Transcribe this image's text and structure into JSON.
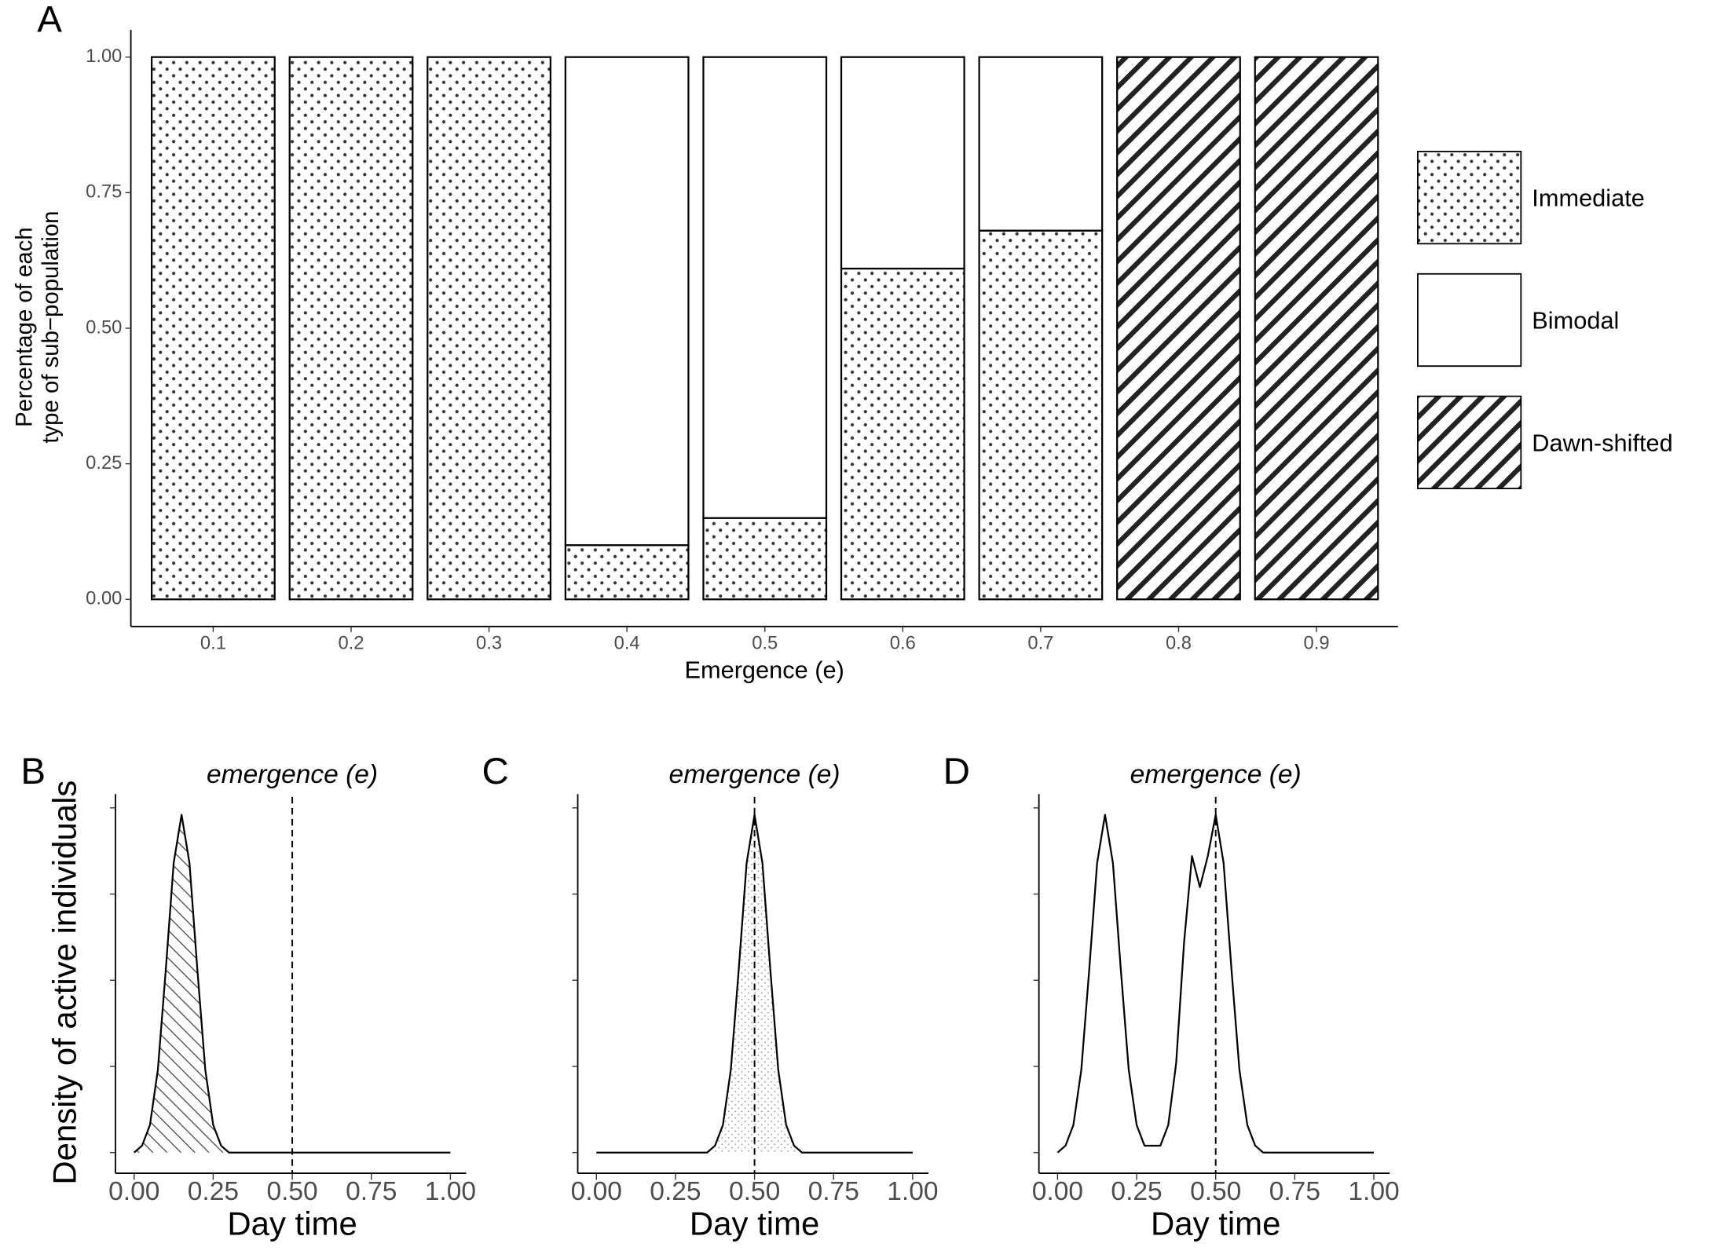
{
  "chart_data": [
    {
      "type": "stacked_bar",
      "panel_label": "A",
      "xlabel": "Emergence (e)",
      "ylabel": [
        "Percentage of each",
        "type of sub−population"
      ],
      "categories": [
        "0.1",
        "0.2",
        "0.3",
        "0.4",
        "0.5",
        "0.6",
        "0.7",
        "0.8",
        "0.9"
      ],
      "series": [
        {
          "name": "Immediate",
          "pattern": "dots",
          "values": [
            1,
            1,
            1,
            0.1,
            0.15,
            0.61,
            0.68,
            0,
            0
          ]
        },
        {
          "name": "Bimodal",
          "pattern": "none",
          "values": [
            0,
            0,
            0,
            0.9,
            0.85,
            0.39,
            0.32,
            0,
            0
          ]
        },
        {
          "name": "Dawn-shifted",
          "pattern": "stripes",
          "values": [
            0,
            0,
            0,
            0,
            0,
            0,
            0,
            1,
            1
          ]
        }
      ],
      "ylim": [
        -0.05,
        1.05
      ],
      "yticks": [
        {
          "value": 0,
          "label": "0.00"
        },
        {
          "value": 0.25,
          "label": "0.25"
        },
        {
          "value": 0.5,
          "label": "0.50"
        },
        {
          "value": 0.75,
          "label": "0.75"
        },
        {
          "value": 1,
          "label": "1.00"
        }
      ]
    },
    {
      "type": "line",
      "panel_label": "B",
      "xlabel": "Day time",
      "ylabel": "Density of active individuals",
      "annotation": "emergence (e)",
      "vline": 0.5,
      "fill_pattern": "hatch",
      "color": "#000000",
      "x": [
        0,
        0.025,
        0.05,
        0.075,
        0.1,
        0.125,
        0.15,
        0.175,
        0.2,
        0.225,
        0.25,
        0.275,
        0.3,
        0.325,
        0.35,
        0.375,
        0.4,
        0.425,
        0.45,
        0.475,
        0.5,
        0.525,
        0.55,
        0.575,
        0.6,
        0.625,
        0.65,
        0.675,
        0.7,
        0.725,
        0.75,
        0.775,
        0.8,
        0.825,
        0.85,
        0.875,
        0.9,
        0.925,
        0.95,
        0.975,
        1
      ],
      "values": [
        0,
        0.02,
        0.08,
        0.24,
        0.53,
        0.84,
        0.98,
        0.84,
        0.53,
        0.24,
        0.08,
        0.02,
        0,
        0,
        0,
        0,
        0,
        0,
        0,
        0,
        0,
        0,
        0,
        0,
        0,
        0,
        0,
        0,
        0,
        0,
        0,
        0,
        0,
        0,
        0,
        0,
        0,
        0,
        0,
        0,
        0
      ],
      "xlim": [
        -0.06,
        1.05
      ],
      "ylim": [
        -0.06,
        1.04
      ],
      "xticks": [
        {
          "value": 0,
          "label": "0.00"
        },
        {
          "value": 0.25,
          "label": "0.25"
        },
        {
          "value": 0.5,
          "label": "0.50"
        },
        {
          "value": 0.75,
          "label": "0.75"
        },
        {
          "value": 1,
          "label": "1.00"
        }
      ],
      "yticks": [
        0,
        0.25,
        0.5,
        0.75,
        1
      ]
    },
    {
      "type": "line",
      "panel_label": "C",
      "xlabel": "Day time",
      "annotation": "emergence (e)",
      "vline": 0.5,
      "fill_pattern": "finedots",
      "color": "#000000",
      "x": [
        0,
        0.025,
        0.05,
        0.075,
        0.1,
        0.125,
        0.15,
        0.175,
        0.2,
        0.225,
        0.25,
        0.275,
        0.3,
        0.325,
        0.35,
        0.375,
        0.4,
        0.425,
        0.45,
        0.475,
        0.5,
        0.525,
        0.55,
        0.575,
        0.6,
        0.625,
        0.65,
        0.675,
        0.7,
        0.725,
        0.75,
        0.775,
        0.8,
        0.825,
        0.85,
        0.875,
        0.9,
        0.925,
        0.95,
        0.975,
        1
      ],
      "values": [
        0,
        0,
        0,
        0,
        0,
        0,
        0,
        0,
        0,
        0,
        0,
        0,
        0,
        0,
        0,
        0.02,
        0.08,
        0.24,
        0.53,
        0.84,
        0.98,
        0.84,
        0.53,
        0.24,
        0.08,
        0.02,
        0,
        0,
        0,
        0,
        0,
        0,
        0,
        0,
        0,
        0,
        0,
        0,
        0,
        0,
        0
      ],
      "xlim": [
        -0.06,
        1.05
      ],
      "ylim": [
        -0.06,
        1.04
      ],
      "xticks": [
        {
          "value": 0,
          "label": "0.00"
        },
        {
          "value": 0.25,
          "label": "0.25"
        },
        {
          "value": 0.5,
          "label": "0.50"
        },
        {
          "value": 0.75,
          "label": "0.75"
        },
        {
          "value": 1,
          "label": "1.00"
        }
      ],
      "yticks": [
        0,
        0.25,
        0.5,
        0.75,
        1
      ]
    },
    {
      "type": "line",
      "panel_label": "D",
      "xlabel": "Day time",
      "annotation": "emergence (e)",
      "vline": 0.5,
      "fill_pattern": "none",
      "color": "#000000",
      "x": [
        0,
        0.025,
        0.05,
        0.075,
        0.1,
        0.125,
        0.15,
        0.175,
        0.2,
        0.225,
        0.25,
        0.275,
        0.3,
        0.325,
        0.35,
        0.375,
        0.4,
        0.425,
        0.45,
        0.475,
        0.5,
        0.525,
        0.55,
        0.575,
        0.6,
        0.625,
        0.65,
        0.675,
        0.7,
        0.725,
        0.75,
        0.775,
        0.8,
        0.825,
        0.85,
        0.875,
        0.9,
        0.925,
        0.95,
        0.975,
        1
      ],
      "values": [
        0,
        0.02,
        0.08,
        0.24,
        0.53,
        0.84,
        0.98,
        0.84,
        0.53,
        0.24,
        0.08,
        0.02,
        0.02,
        0.02,
        0.08,
        0.26,
        0.61,
        0.86,
        0.77,
        0.86,
        0.98,
        0.84,
        0.53,
        0.24,
        0.08,
        0.02,
        0,
        0,
        0,
        0,
        0,
        0,
        0,
        0,
        0,
        0,
        0,
        0,
        0,
        0,
        0
      ],
      "xlim": [
        -0.06,
        1.05
      ],
      "ylim": [
        -0.06,
        1.04
      ],
      "xticks": [
        {
          "value": 0,
          "label": "0.00"
        },
        {
          "value": 0.25,
          "label": "0.25"
        },
        {
          "value": 0.5,
          "label": "0.50"
        },
        {
          "value": 0.75,
          "label": "0.75"
        },
        {
          "value": 1,
          "label": "1.00"
        }
      ],
      "yticks": [
        0,
        0.25,
        0.5,
        0.75,
        1
      ]
    }
  ]
}
